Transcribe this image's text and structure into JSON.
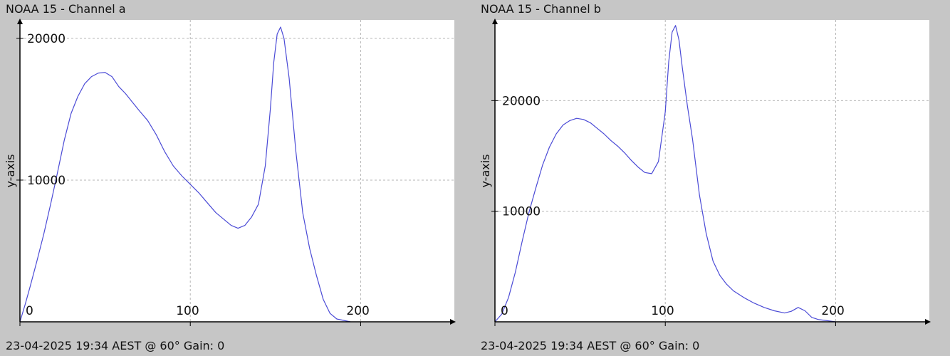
{
  "chart_data": [
    {
      "type": "line",
      "title": "NOAA 15 - Channel a",
      "footer": "23-04-2025 19:34 AEST @ 60° Gain: 0",
      "xlabel": "",
      "ylabel": "y-axis",
      "xlim": [
        0,
        255
      ],
      "ylim": [
        0,
        21300
      ],
      "xticks": [
        0,
        100,
        200
      ],
      "yticks": [
        10000,
        20000
      ],
      "grid": true,
      "line_color": "#4b4bd6",
      "series": [
        {
          "x": [
            0,
            3,
            6,
            10,
            14,
            18,
            22,
            26,
            30,
            34,
            38,
            42,
            46,
            50,
            54,
            58,
            62,
            66,
            70,
            75,
            80,
            85,
            90,
            95,
            100,
            105,
            110,
            115,
            120,
            124,
            128,
            132,
            136,
            140,
            144,
            147,
            149,
            151,
            153,
            155,
            158,
            162,
            166,
            170,
            174,
            178,
            182,
            186,
            190,
            194
          ],
          "y": [
            0,
            1200,
            2500,
            4300,
            6200,
            8300,
            10500,
            12800,
            14700,
            15900,
            16800,
            17300,
            17550,
            17600,
            17300,
            16600,
            16100,
            15500,
            14900,
            14200,
            13200,
            12000,
            11000,
            10300,
            9700,
            9100,
            8400,
            7700,
            7200,
            6800,
            6600,
            6800,
            7400,
            8300,
            11000,
            15000,
            18300,
            20300,
            20800,
            20000,
            17200,
            12000,
            7700,
            5200,
            3300,
            1600,
            600,
            200,
            100,
            0
          ]
        }
      ]
    },
    {
      "type": "line",
      "title": "NOAA 15 - Channel b",
      "footer": "23-04-2025 19:34 AEST @ 60° Gain: 0",
      "xlabel": "",
      "ylabel": "y-axis",
      "xlim": [
        0,
        255
      ],
      "ylim": [
        0,
        27300
      ],
      "xticks": [
        0,
        100,
        200
      ],
      "yticks": [
        10000,
        20000
      ],
      "grid": true,
      "line_color": "#4b4bd6",
      "series": [
        {
          "x": [
            0,
            4,
            8,
            12,
            16,
            20,
            24,
            28,
            32,
            36,
            40,
            44,
            48,
            52,
            56,
            60,
            64,
            68,
            72,
            76,
            80,
            84,
            88,
            92,
            96,
            100,
            102,
            104,
            106,
            108,
            110,
            113,
            116,
            120,
            124,
            128,
            132,
            136,
            140,
            146,
            152,
            158,
            164,
            170,
            174,
            178,
            182,
            186,
            190,
            195,
            200
          ],
          "y": [
            0,
            700,
            2200,
            4500,
            7300,
            9900,
            12100,
            14200,
            15800,
            17000,
            17800,
            18200,
            18400,
            18300,
            18000,
            17500,
            17000,
            16400,
            15900,
            15300,
            14600,
            14000,
            13500,
            13400,
            14500,
            19000,
            23500,
            26200,
            26800,
            25500,
            23000,
            19500,
            16500,
            11500,
            8000,
            5500,
            4200,
            3400,
            2800,
            2200,
            1700,
            1300,
            1000,
            800,
            950,
            1300,
            1000,
            400,
            200,
            100,
            0
          ]
        }
      ]
    }
  ]
}
